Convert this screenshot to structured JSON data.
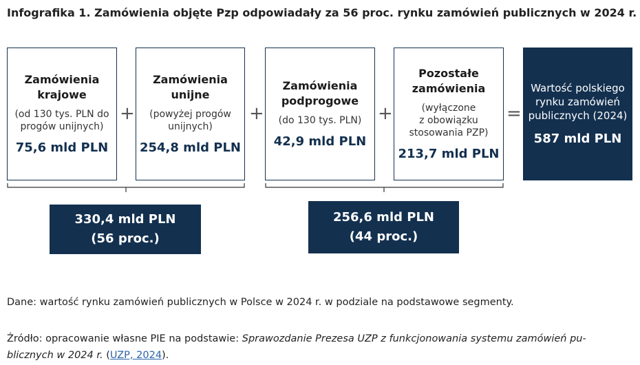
{
  "title": "Infografika 1. Zamówienia objęte Pzp odpowiadały za 56 proc. rynku zamówień publicznych w 2024 r.",
  "boxes": [
    {
      "name_l1": "Zamówienia",
      "name_l2": "krajowe",
      "desc_l1": "(od 130 tys. PLN do",
      "desc_l2": "progów unijnych)",
      "value": "75,6 mld PLN"
    },
    {
      "name_l1": "Zamówienia",
      "name_l2": "unijne",
      "desc_l1": "(powyżej progów",
      "desc_l2": "unijnych)",
      "value": "254,8 mld PLN"
    },
    {
      "name_l1": "Zamówienia",
      "name_l2": "podprogowe",
      "desc_l1": "(do 130 tys. PLN)",
      "value": "42,9 mld PLN"
    },
    {
      "name_l1": "Pozostałe",
      "name_l2": "zamówienia",
      "desc_l1": "(wyłączone",
      "desc_l2": "z obowiązku",
      "desc_l3": "stosowania PZP)",
      "value": "213,7 mld PLN"
    }
  ],
  "operators": {
    "plus": "+",
    "equals": "="
  },
  "total": {
    "desc_l1": "Wartość polskiego",
    "desc_l2": "rynku zamówień",
    "desc_l3": "publicznych (2024)",
    "value": "587 mld PLN"
  },
  "sums": [
    {
      "value": "330,4 mld PLN",
      "share": "(56 proc.)"
    },
    {
      "value": "256,6 mld PLN",
      "share": "(44 proc.)"
    }
  ],
  "note": "Dane: wartość rynku zamówień publicznych w Polsce w 2024 r. w podziale na podstawowe segmenty.",
  "source": {
    "prefix": "Źródło: opracowanie własne PIE na podstawie: ",
    "italic_l1": "Sprawozdanie Prezesa UZP z funkcjonowania systemu zamówień pu-",
    "italic_l2": "blicznych w 2024 r.",
    "open_paren": " (",
    "link": "UZP, 2024",
    "close": ")."
  }
}
